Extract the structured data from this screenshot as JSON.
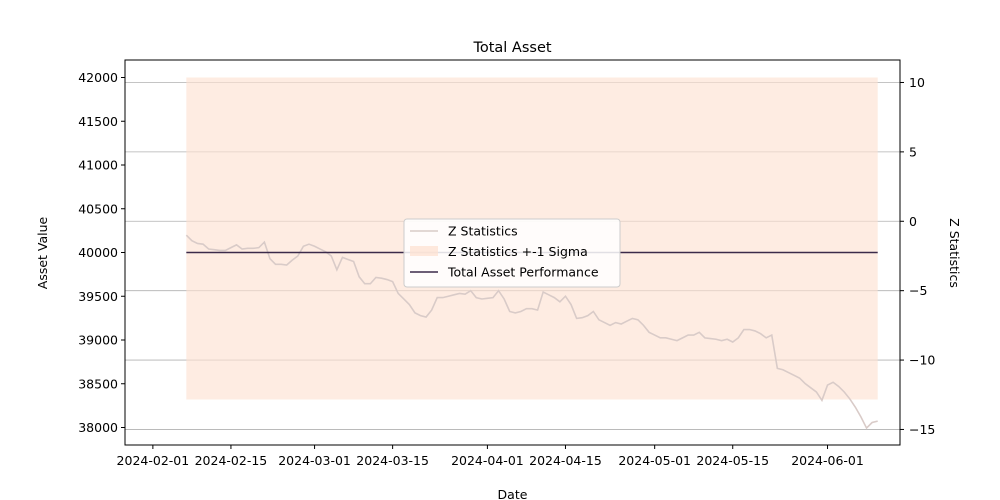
{
  "chart_data": {
    "type": "line",
    "title": "Total Asset",
    "xlabel": "Date",
    "ylabel": "Asset Value",
    "ylabel_right": "Z Statistics",
    "x_ticks": [
      "2024-02-01",
      "2024-02-15",
      "2024-03-01",
      "2024-03-15",
      "2024-04-01",
      "2024-04-15",
      "2024-05-01",
      "2024-05-15",
      "2024-06-01"
    ],
    "y_ticks": [
      38000,
      38500,
      39000,
      39500,
      40000,
      40500,
      41000,
      41500,
      42000
    ],
    "y2_ticks": [
      -15,
      -10,
      -5,
      0,
      5,
      10
    ],
    "xlim": [
      "2024-01-27",
      "2024-06-14"
    ],
    "ylim": [
      37800,
      42200
    ],
    "y2lim": [
      -16.12,
      11.62
    ],
    "grid": "right-axis horizontal",
    "legend": {
      "position": "center",
      "entries": [
        "Z Statistics",
        "Z Statistics +-1 Sigma",
        "Total Asset Performance"
      ]
    },
    "colors": {
      "z_line": "#d9cbc8",
      "sigma_band": "#fde2d2",
      "total_asset": "#3b2a4a",
      "grid": "#b0b0b0"
    },
    "series": [
      {
        "name": "Z Statistics",
        "axis": "right",
        "points": [
          [
            "2024-02-07",
            -1.0
          ],
          [
            "2024-02-08",
            -1.4
          ],
          [
            "2024-02-09",
            -1.6
          ],
          [
            "2024-02-10",
            -1.65
          ],
          [
            "2024-02-11",
            -2.0
          ],
          [
            "2024-02-12",
            -2.05
          ],
          [
            "2024-02-13",
            -2.1
          ],
          [
            "2024-02-14",
            -2.1
          ],
          [
            "2024-02-15",
            -1.9
          ],
          [
            "2024-02-16",
            -1.7
          ],
          [
            "2024-02-17",
            -2.0
          ],
          [
            "2024-02-18",
            -1.95
          ],
          [
            "2024-02-19",
            -1.95
          ],
          [
            "2024-02-20",
            -1.9
          ],
          [
            "2024-02-21",
            -1.5
          ],
          [
            "2024-02-22",
            -2.7
          ],
          [
            "2024-02-23",
            -3.1
          ],
          [
            "2024-02-24",
            -3.1
          ],
          [
            "2024-02-25",
            -3.15
          ],
          [
            "2024-02-26",
            -2.8
          ],
          [
            "2024-02-27",
            -2.5
          ],
          [
            "2024-02-28",
            -1.8
          ],
          [
            "2024-02-29",
            -1.65
          ],
          [
            "2024-03-01",
            -1.8
          ],
          [
            "2024-03-02",
            -2.0
          ],
          [
            "2024-03-03",
            -2.2
          ],
          [
            "2024-03-04",
            -2.5
          ],
          [
            "2024-03-05",
            -3.5
          ],
          [
            "2024-03-06",
            -2.6
          ],
          [
            "2024-03-07",
            -2.75
          ],
          [
            "2024-03-08",
            -2.9
          ],
          [
            "2024-03-09",
            -4.0
          ],
          [
            "2024-03-10",
            -4.5
          ],
          [
            "2024-03-11",
            -4.5
          ],
          [
            "2024-03-12",
            -4.05
          ],
          [
            "2024-03-13",
            -4.1
          ],
          [
            "2024-03-14",
            -4.2
          ],
          [
            "2024-03-15",
            -4.35
          ],
          [
            "2024-03-16",
            -5.2
          ],
          [
            "2024-03-17",
            -5.6
          ],
          [
            "2024-03-18",
            -6.0
          ],
          [
            "2024-03-19",
            -6.6
          ],
          [
            "2024-03-20",
            -6.8
          ],
          [
            "2024-03-21",
            -6.9
          ],
          [
            "2024-03-22",
            -6.4
          ],
          [
            "2024-03-23",
            -5.5
          ],
          [
            "2024-03-24",
            -5.5
          ],
          [
            "2024-03-25",
            -5.4
          ],
          [
            "2024-03-26",
            -5.3
          ],
          [
            "2024-03-27",
            -5.2
          ],
          [
            "2024-03-28",
            -5.25
          ],
          [
            "2024-03-29",
            -5.0
          ],
          [
            "2024-03-30",
            -5.5
          ],
          [
            "2024-03-31",
            -5.6
          ],
          [
            "2024-04-01",
            -5.55
          ],
          [
            "2024-04-02",
            -5.5
          ],
          [
            "2024-04-03",
            -5.0
          ],
          [
            "2024-04-04",
            -5.6
          ],
          [
            "2024-04-05",
            -6.5
          ],
          [
            "2024-04-06",
            -6.6
          ],
          [
            "2024-04-07",
            -6.5
          ],
          [
            "2024-04-08",
            -6.3
          ],
          [
            "2024-04-09",
            -6.3
          ],
          [
            "2024-04-10",
            -6.4
          ],
          [
            "2024-04-11",
            -5.1
          ],
          [
            "2024-04-12",
            -5.3
          ],
          [
            "2024-04-13",
            -5.5
          ],
          [
            "2024-04-14",
            -5.8
          ],
          [
            "2024-04-15",
            -5.4
          ],
          [
            "2024-04-16",
            -6.0
          ],
          [
            "2024-04-17",
            -7.0
          ],
          [
            "2024-04-18",
            -6.95
          ],
          [
            "2024-04-19",
            -6.8
          ],
          [
            "2024-04-20",
            -6.5
          ],
          [
            "2024-04-21",
            -7.1
          ],
          [
            "2024-04-22",
            -7.3
          ],
          [
            "2024-04-23",
            -7.5
          ],
          [
            "2024-04-24",
            -7.3
          ],
          [
            "2024-04-25",
            -7.4
          ],
          [
            "2024-04-26",
            -7.2
          ],
          [
            "2024-04-27",
            -7.0
          ],
          [
            "2024-04-28",
            -7.1
          ],
          [
            "2024-04-29",
            -7.5
          ],
          [
            "2024-04-30",
            -8.0
          ],
          [
            "2024-05-01",
            -8.2
          ],
          [
            "2024-05-02",
            -8.4
          ],
          [
            "2024-05-03",
            -8.4
          ],
          [
            "2024-05-04",
            -8.5
          ],
          [
            "2024-05-05",
            -8.6
          ],
          [
            "2024-05-06",
            -8.4
          ],
          [
            "2024-05-07",
            -8.2
          ],
          [
            "2024-05-08",
            -8.2
          ],
          [
            "2024-05-09",
            -8.0
          ],
          [
            "2024-05-10",
            -8.4
          ],
          [
            "2024-05-11",
            -8.45
          ],
          [
            "2024-05-12",
            -8.5
          ],
          [
            "2024-05-13",
            -8.6
          ],
          [
            "2024-05-14",
            -8.5
          ],
          [
            "2024-05-15",
            -8.7
          ],
          [
            "2024-05-16",
            -8.4
          ],
          [
            "2024-05-17",
            -7.8
          ],
          [
            "2024-05-18",
            -7.8
          ],
          [
            "2024-05-19",
            -7.9
          ],
          [
            "2024-05-20",
            -8.1
          ],
          [
            "2024-05-21",
            -8.4
          ],
          [
            "2024-05-22",
            -8.2
          ],
          [
            "2024-05-23",
            -10.6
          ],
          [
            "2024-05-24",
            -10.7
          ],
          [
            "2024-05-25",
            -10.9
          ],
          [
            "2024-05-26",
            -11.1
          ],
          [
            "2024-05-27",
            -11.3
          ],
          [
            "2024-05-28",
            -11.7
          ],
          [
            "2024-05-29",
            -12.0
          ],
          [
            "2024-05-30",
            -12.3
          ],
          [
            "2024-05-31",
            -12.9
          ],
          [
            "2024-06-01",
            -11.8
          ],
          [
            "2024-06-02",
            -11.6
          ],
          [
            "2024-06-03",
            -11.9
          ],
          [
            "2024-06-04",
            -12.3
          ],
          [
            "2024-06-05",
            -12.8
          ],
          [
            "2024-06-06",
            -13.4
          ],
          [
            "2024-06-07",
            -14.1
          ],
          [
            "2024-06-08",
            -14.9
          ],
          [
            "2024-06-09",
            -14.5
          ],
          [
            "2024-06-10",
            -14.4
          ]
        ]
      },
      {
        "name": "Z Statistics +-1 Sigma",
        "axis": "left",
        "type": "band",
        "x_range": [
          "2024-02-07",
          "2024-06-10"
        ],
        "y_range": [
          38320,
          42000
        ]
      },
      {
        "name": "Total Asset Performance",
        "axis": "left",
        "points": [
          [
            "2024-02-07",
            40000
          ],
          [
            "2024-06-10",
            40000
          ]
        ]
      }
    ]
  }
}
